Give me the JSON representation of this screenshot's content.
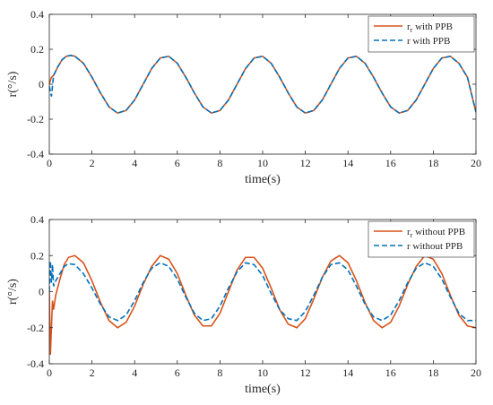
{
  "chart_data": [
    {
      "type": "line",
      "xlabel": "time(s)",
      "ylabel": "r(°/s)",
      "xlim": [
        0,
        20
      ],
      "ylim": [
        -0.4,
        0.4
      ],
      "xticks": [
        0,
        2,
        4,
        6,
        8,
        10,
        12,
        14,
        16,
        18,
        20
      ],
      "yticks": [
        -0.4,
        -0.2,
        0,
        0.2,
        0.4
      ],
      "xtick_labels": [
        "0",
        "2",
        "4",
        "6",
        "8",
        "10",
        "12",
        "14",
        "16",
        "18",
        "20"
      ],
      "ytick_labels": [
        "-0.4",
        "-0.2",
        "0",
        "0.2",
        "0.4"
      ],
      "grid": false,
      "legend_position": "top-right",
      "series": [
        {
          "legend_main": "r",
          "legend_sub": "r",
          "legend_rest": " with PPB",
          "color": "#D95319",
          "dash": "solid",
          "x": [
            0,
            0.1,
            0.2,
            0.4,
            0.6,
            0.8,
            1.0,
            1.2,
            1.6,
            2.0,
            2.4,
            2.8,
            3.2,
            3.6,
            4.0,
            4.4,
            4.8,
            5.2,
            5.6,
            6.0,
            6.4,
            6.8,
            7.2,
            7.6,
            8.0,
            8.4,
            8.8,
            9.2,
            9.6,
            10.0,
            10.4,
            10.8,
            11.2,
            11.6,
            12.0,
            12.4,
            12.8,
            13.2,
            13.6,
            14.0,
            14.4,
            14.8,
            15.2,
            15.6,
            16.0,
            16.4,
            16.8,
            17.2,
            17.6,
            18.0,
            18.4,
            18.8,
            19.2,
            19.6,
            20.0
          ],
          "y": [
            0.0,
            0.04,
            0.05,
            0.1,
            0.14,
            0.16,
            0.165,
            0.16,
            0.12,
            0.04,
            -0.05,
            -0.13,
            -0.165,
            -0.15,
            -0.09,
            0.0,
            0.09,
            0.15,
            0.16,
            0.12,
            0.04,
            -0.05,
            -0.13,
            -0.165,
            -0.15,
            -0.09,
            0.0,
            0.09,
            0.15,
            0.16,
            0.12,
            0.04,
            -0.05,
            -0.13,
            -0.165,
            -0.15,
            -0.09,
            0.0,
            0.09,
            0.15,
            0.16,
            0.12,
            0.04,
            -0.05,
            -0.13,
            -0.165,
            -0.15,
            -0.09,
            0.0,
            0.09,
            0.15,
            0.16,
            0.12,
            0.04,
            -0.16
          ]
        },
        {
          "legend_main": "r with PPB",
          "legend_sub": "",
          "legend_rest": "",
          "color": "#0072BD",
          "dash": "dashed",
          "x": [
            0,
            0.1,
            0.2,
            0.4,
            0.6,
            0.8,
            1.0,
            1.2,
            1.6,
            2.0,
            2.4,
            2.8,
            3.2,
            3.6,
            4.0,
            4.4,
            4.8,
            5.2,
            5.6,
            6.0,
            6.4,
            6.8,
            7.2,
            7.6,
            8.0,
            8.4,
            8.8,
            9.2,
            9.6,
            10.0,
            10.4,
            10.8,
            11.2,
            11.6,
            12.0,
            12.4,
            12.8,
            13.2,
            13.6,
            14.0,
            14.4,
            14.8,
            15.2,
            15.6,
            16.0,
            16.4,
            16.8,
            17.2,
            17.6,
            18.0,
            18.4,
            18.8,
            19.2,
            19.6,
            20.0
          ],
          "y": [
            -0.01,
            -0.07,
            0.05,
            0.1,
            0.14,
            0.16,
            0.165,
            0.16,
            0.12,
            0.04,
            -0.05,
            -0.13,
            -0.165,
            -0.15,
            -0.09,
            0.0,
            0.09,
            0.15,
            0.16,
            0.12,
            0.04,
            -0.05,
            -0.13,
            -0.165,
            -0.15,
            -0.09,
            0.0,
            0.09,
            0.15,
            0.16,
            0.12,
            0.04,
            -0.05,
            -0.13,
            -0.165,
            -0.15,
            -0.09,
            0.0,
            0.09,
            0.15,
            0.16,
            0.12,
            0.04,
            -0.05,
            -0.13,
            -0.165,
            -0.15,
            -0.09,
            0.0,
            0.09,
            0.15,
            0.16,
            0.12,
            0.04,
            -0.16
          ]
        }
      ]
    },
    {
      "type": "line",
      "xlabel": "time(s)",
      "ylabel": "r(°/s)",
      "xlim": [
        0,
        20
      ],
      "ylim": [
        -0.4,
        0.4
      ],
      "xticks": [
        0,
        2,
        4,
        6,
        8,
        10,
        12,
        14,
        16,
        18,
        20
      ],
      "yticks": [
        -0.4,
        -0.2,
        0,
        0.2,
        0.4
      ],
      "xtick_labels": [
        "0",
        "2",
        "4",
        "6",
        "8",
        "10",
        "12",
        "14",
        "16",
        "18",
        "20"
      ],
      "ytick_labels": [
        "-0.4",
        "-0.2",
        "0",
        "0.2",
        "0.4"
      ],
      "grid": false,
      "legend_position": "top-right",
      "series": [
        {
          "legend_main": "r",
          "legend_sub": "r",
          "legend_rest": " without PPB",
          "color": "#D95319",
          "dash": "solid",
          "x": [
            0,
            0.05,
            0.1,
            0.15,
            0.2,
            0.3,
            0.5,
            0.7,
            0.9,
            1.2,
            1.6,
            2.0,
            2.4,
            2.8,
            3.2,
            3.6,
            4.0,
            4.4,
            4.8,
            5.2,
            5.6,
            6.0,
            6.4,
            6.8,
            7.2,
            7.6,
            8.0,
            8.4,
            8.8,
            9.2,
            9.6,
            10.0,
            10.4,
            10.8,
            11.2,
            11.6,
            12.0,
            12.4,
            12.8,
            13.2,
            13.6,
            14.0,
            14.4,
            14.8,
            15.2,
            15.6,
            16.0,
            16.4,
            16.8,
            17.2,
            17.6,
            18.0,
            18.4,
            18.8,
            19.2,
            19.6,
            20.0
          ],
          "y": [
            0.0,
            -0.35,
            -0.2,
            -0.05,
            -0.1,
            -0.02,
            0.07,
            0.15,
            0.19,
            0.2,
            0.16,
            0.06,
            -0.06,
            -0.16,
            -0.2,
            -0.17,
            -0.08,
            0.04,
            0.14,
            0.2,
            0.18,
            0.1,
            -0.02,
            -0.13,
            -0.19,
            -0.19,
            -0.12,
            0.0,
            0.12,
            0.19,
            0.19,
            0.13,
            0.02,
            -0.1,
            -0.18,
            -0.2,
            -0.15,
            -0.04,
            0.08,
            0.17,
            0.2,
            0.16,
            0.06,
            -0.06,
            -0.16,
            -0.2,
            -0.17,
            -0.08,
            0.04,
            0.14,
            0.2,
            0.18,
            0.1,
            -0.02,
            -0.13,
            -0.19,
            -0.2
          ]
        },
        {
          "legend_main": "r without PPB",
          "legend_sub": "",
          "legend_rest": "",
          "color": "#0072BD",
          "dash": "dashed",
          "x": [
            0,
            0.05,
            0.1,
            0.15,
            0.2,
            0.3,
            0.5,
            0.7,
            0.9,
            1.2,
            1.6,
            2.0,
            2.4,
            2.8,
            3.2,
            3.6,
            4.0,
            4.4,
            4.8,
            5.2,
            5.6,
            6.0,
            6.4,
            6.8,
            7.2,
            7.6,
            8.0,
            8.4,
            8.8,
            9.2,
            9.6,
            10.0,
            10.4,
            10.8,
            11.2,
            11.6,
            12.0,
            12.4,
            12.8,
            13.2,
            13.6,
            14.0,
            14.4,
            14.8,
            15.2,
            15.6,
            16.0,
            16.4,
            16.8,
            17.2,
            17.6,
            18.0,
            18.4,
            18.8,
            19.2,
            19.6,
            20.0
          ],
          "y": [
            0.0,
            0.17,
            0.05,
            0.15,
            0.03,
            0.06,
            0.1,
            0.14,
            0.155,
            0.15,
            0.1,
            0.02,
            -0.07,
            -0.14,
            -0.16,
            -0.13,
            -0.05,
            0.05,
            0.13,
            0.16,
            0.14,
            0.07,
            -0.03,
            -0.12,
            -0.16,
            -0.15,
            -0.08,
            0.02,
            0.11,
            0.16,
            0.15,
            0.09,
            -0.01,
            -0.1,
            -0.15,
            -0.16,
            -0.11,
            -0.02,
            0.08,
            0.15,
            0.16,
            0.12,
            0.03,
            -0.07,
            -0.14,
            -0.16,
            -0.13,
            -0.05,
            0.05,
            0.13,
            0.16,
            0.14,
            0.07,
            -0.03,
            -0.12,
            -0.16,
            -0.16
          ]
        }
      ]
    }
  ]
}
